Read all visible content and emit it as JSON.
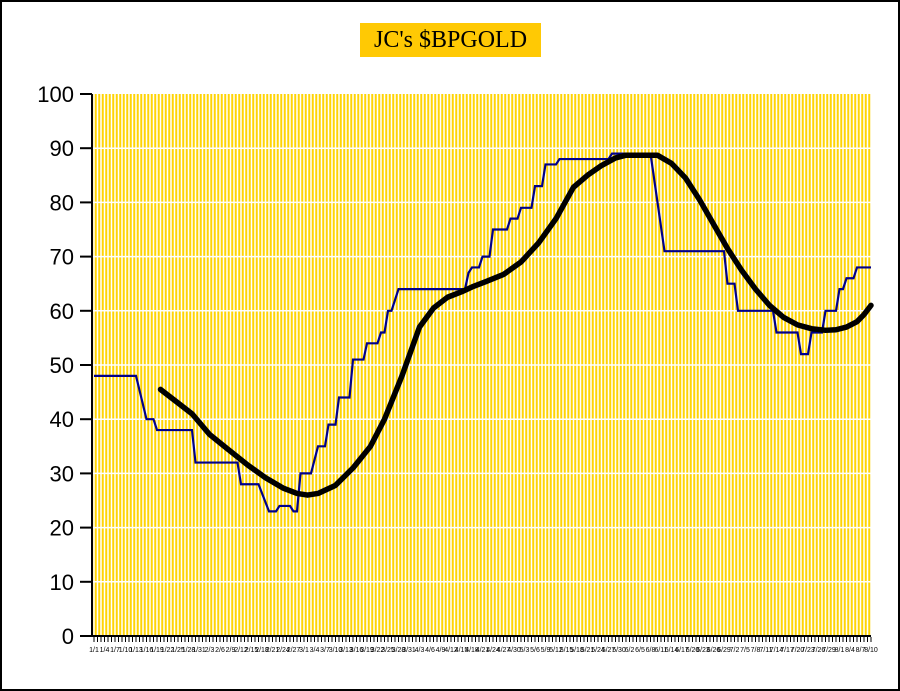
{
  "header": {
    "title": "JC's $BPGOLD"
  },
  "colors": {
    "page_bg": "#FFFFFF",
    "border": "#000000",
    "title_bg": "#FFC904",
    "plot_bg": "#FFD404",
    "grid": "#FFFFFF",
    "axis": "#000000",
    "index_line": "#00008B",
    "ma_line": "#000000",
    "text": "#000000"
  },
  "chart_data": {
    "type": "line",
    "title": "JC's $BPGOLD",
    "xlabel": "",
    "ylabel": "",
    "ylim": [
      0,
      100
    ],
    "yticks": [
      0,
      10,
      20,
      30,
      40,
      50,
      60,
      70,
      80,
      90,
      100
    ],
    "grid": "dense vertical white stripes (one per day) plus horizontal white lines every 10",
    "legend_position": "none",
    "num_days": 223,
    "x_label_every_n_days": 3,
    "x_labels": [
      "1/1",
      "1/4",
      "1/7",
      "1/10",
      "1/13",
      "1/16",
      "1/19",
      "1/22",
      "1/25",
      "1/28",
      "1/31",
      "2/3",
      "2/6",
      "2/9",
      "2/12",
      "2/15",
      "2/18",
      "2/21",
      "2/24",
      "2/27",
      "3/1",
      "3/4",
      "3/7",
      "3/10",
      "3/13",
      "3/16",
      "3/19",
      "3/22",
      "3/25",
      "3/28",
      "3/31",
      "4/3",
      "4/6",
      "4/9",
      "4/12",
      "4/15",
      "4/18",
      "4/21",
      "4/24",
      "4/27",
      "4/30",
      "5/3",
      "5/6",
      "5/9",
      "5/12",
      "5/15",
      "5/18",
      "5/21",
      "5/24",
      "5/27",
      "5/30",
      "6/2",
      "6/5",
      "6/8",
      "6/11",
      "6/14",
      "6/17",
      "6/20",
      "6/23",
      "6/26",
      "6/29",
      "7/2",
      "7/5",
      "7/8",
      "7/11",
      "7/14",
      "7/17",
      "7/20",
      "7/23",
      "7/26",
      "7/29",
      "8/1",
      "8/4",
      "8/7",
      "8/10"
    ],
    "series": [
      {
        "name": "bullish-percent-index",
        "style": "thin stepped navy line",
        "points": [
          [
            0,
            48
          ],
          [
            12,
            48
          ],
          [
            15,
            40
          ],
          [
            17,
            40
          ],
          [
            18,
            38
          ],
          [
            28,
            38
          ],
          [
            29,
            32
          ],
          [
            41,
            32
          ],
          [
            42,
            28
          ],
          [
            47,
            28
          ],
          [
            50,
            23
          ],
          [
            52,
            23
          ],
          [
            53,
            24
          ],
          [
            56,
            24
          ],
          [
            57,
            23
          ],
          [
            58,
            23
          ],
          [
            59,
            30
          ],
          [
            62,
            30
          ],
          [
            64,
            35
          ],
          [
            66,
            35
          ],
          [
            67,
            39
          ],
          [
            69,
            39
          ],
          [
            70,
            44
          ],
          [
            73,
            44
          ],
          [
            74,
            51
          ],
          [
            77,
            51
          ],
          [
            78,
            54
          ],
          [
            81,
            54
          ],
          [
            82,
            56
          ],
          [
            83,
            56
          ],
          [
            84,
            60
          ],
          [
            85,
            60
          ],
          [
            87,
            64
          ],
          [
            106,
            64
          ],
          [
            107,
            67
          ],
          [
            108,
            68
          ],
          [
            110,
            68
          ],
          [
            111,
            70
          ],
          [
            113,
            70
          ],
          [
            114,
            75
          ],
          [
            118,
            75
          ],
          [
            119,
            77
          ],
          [
            121,
            77
          ],
          [
            122,
            79
          ],
          [
            125,
            79
          ],
          [
            126,
            83
          ],
          [
            128,
            83
          ],
          [
            129,
            87
          ],
          [
            132,
            87
          ],
          [
            133,
            88
          ],
          [
            147,
            88
          ],
          [
            148,
            89
          ],
          [
            159,
            89
          ],
          [
            163,
            71
          ],
          [
            180,
            71
          ],
          [
            181,
            65
          ],
          [
            183,
            65
          ],
          [
            184,
            60
          ],
          [
            194,
            60
          ],
          [
            195,
            56
          ],
          [
            201,
            56
          ],
          [
            202,
            52
          ],
          [
            204,
            52
          ],
          [
            205,
            56
          ],
          [
            208,
            56
          ],
          [
            209,
            60
          ],
          [
            212,
            60
          ],
          [
            213,
            64
          ],
          [
            214,
            64
          ],
          [
            215,
            66
          ],
          [
            217,
            66
          ],
          [
            218,
            68
          ],
          [
            222,
            68
          ]
        ]
      },
      {
        "name": "moving-average",
        "style": "thick smooth black line",
        "points": [
          [
            19,
            45.5
          ],
          [
            24,
            43
          ],
          [
            28,
            41
          ],
          [
            33,
            37.2
          ],
          [
            38,
            34.6
          ],
          [
            44,
            31.5
          ],
          [
            49,
            29.2
          ],
          [
            54,
            27.3
          ],
          [
            58,
            26.3
          ],
          [
            61,
            26
          ],
          [
            64,
            26.3
          ],
          [
            69,
            27.8
          ],
          [
            74,
            31
          ],
          [
            79,
            35
          ],
          [
            83,
            40
          ],
          [
            88,
            48
          ],
          [
            93,
            57
          ],
          [
            97,
            60.5
          ],
          [
            101,
            62.5
          ],
          [
            105,
            63.5
          ],
          [
            108,
            64.4
          ],
          [
            112,
            65.4
          ],
          [
            117,
            66.7
          ],
          [
            122,
            69
          ],
          [
            127,
            72.5
          ],
          [
            132,
            77
          ],
          [
            137,
            82.8
          ],
          [
            141,
            85
          ],
          [
            145,
            86.8
          ],
          [
            149,
            88.2
          ],
          [
            152,
            88.7
          ],
          [
            161,
            88.7
          ],
          [
            165,
            87.2
          ],
          [
            169,
            84.5
          ],
          [
            173,
            80.5
          ],
          [
            177,
            76
          ],
          [
            181,
            71.5
          ],
          [
            185,
            67.5
          ],
          [
            189,
            64
          ],
          [
            193,
            61
          ],
          [
            197,
            58.8
          ],
          [
            201,
            57.4
          ],
          [
            205,
            56.7
          ],
          [
            209,
            56.4
          ],
          [
            212,
            56.5
          ],
          [
            215,
            57
          ],
          [
            218,
            58
          ],
          [
            220,
            59.3
          ],
          [
            222,
            61
          ]
        ]
      }
    ]
  }
}
